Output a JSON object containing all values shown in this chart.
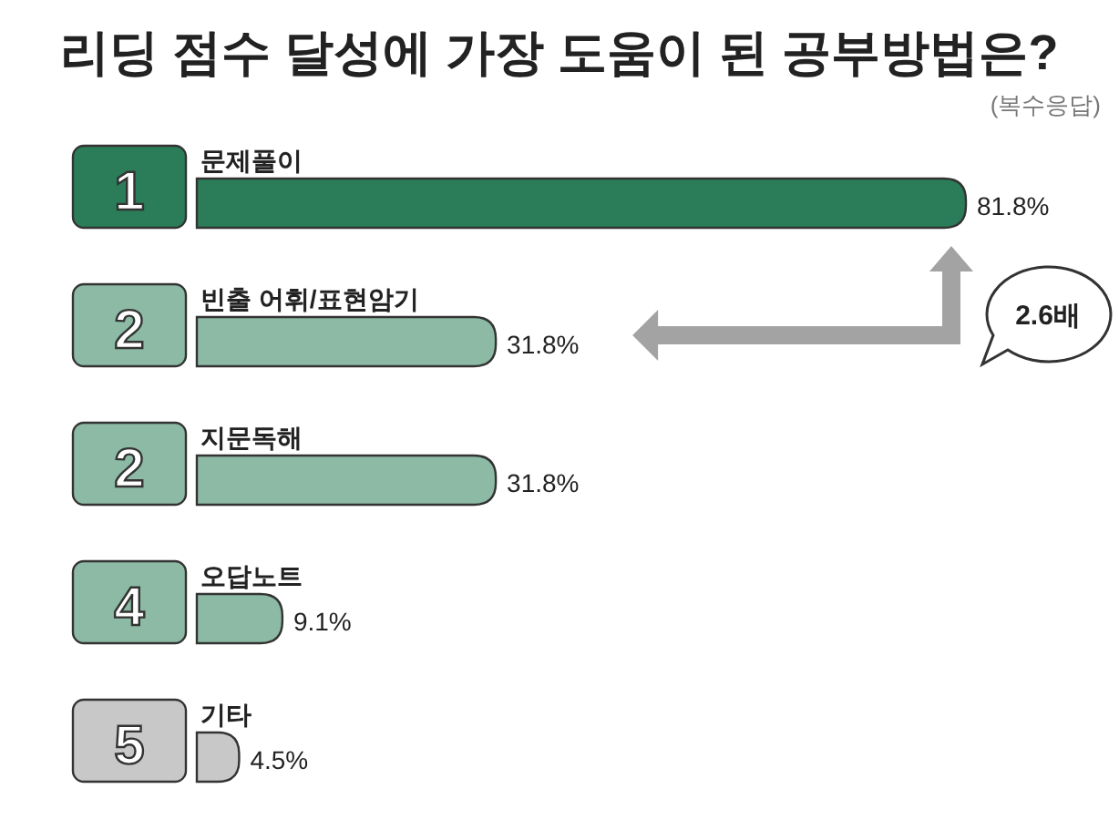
{
  "chart_data": {
    "type": "bar",
    "orientation": "horizontal",
    "title": "리딩 점수 달성에 가장 도움이 된 공부방법은?",
    "subtitle": "(복수응답)",
    "categories": [
      "문제풀이",
      "빈출 어휘/표현암기",
      "지문독해",
      "오답노트",
      "기타"
    ],
    "values": [
      81.8,
      31.8,
      31.8,
      9.1,
      4.5
    ],
    "colors": [
      "#2a7d58",
      "#8cbaa5",
      "#8cbaa5",
      "#8cbaa5",
      "#c8c8c8"
    ],
    "value_labels": [
      "81.8%",
      "31.8%",
      "31.8%",
      "9.1%",
      "4.5%"
    ],
    "annotations": [
      "1",
      "2",
      "2",
      "4",
      "5",
      "2.6배"
    ]
  }
}
